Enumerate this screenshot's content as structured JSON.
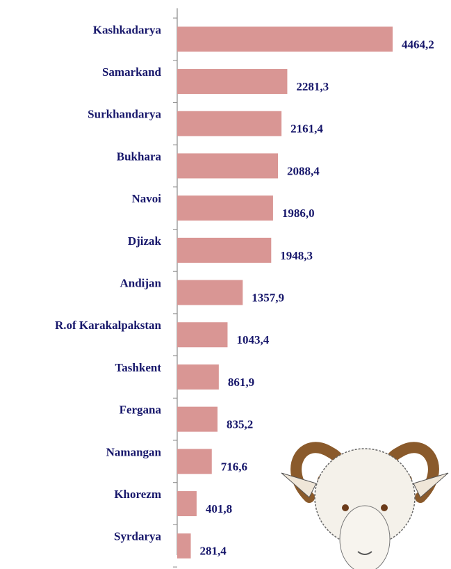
{
  "chart_data": {
    "type": "bar",
    "orientation": "horizontal",
    "categories": [
      "Kashkadarya",
      "Samarkand",
      "Surkhandarya",
      "Bukhara",
      "Navoi",
      "Djizak",
      "Andijan",
      "R.of Karakalpakstan",
      "Tashkent",
      "Fergana",
      "Namangan",
      "Khorezm",
      "Syrdarya"
    ],
    "values": [
      4464.2,
      2281.3,
      2161.4,
      2088.4,
      1986.0,
      1948.3,
      1357.9,
      1043.4,
      861.9,
      835.2,
      716.6,
      401.8,
      281.4
    ],
    "value_labels": [
      "4464,2",
      "2281,3",
      "2161,4",
      "2088,4",
      "1986,0",
      "1948,3",
      "1357,9",
      "1043,4",
      "861,9",
      "835,2",
      "716,6",
      "401,8",
      "281,4"
    ],
    "color": "#d99694"
  }
}
